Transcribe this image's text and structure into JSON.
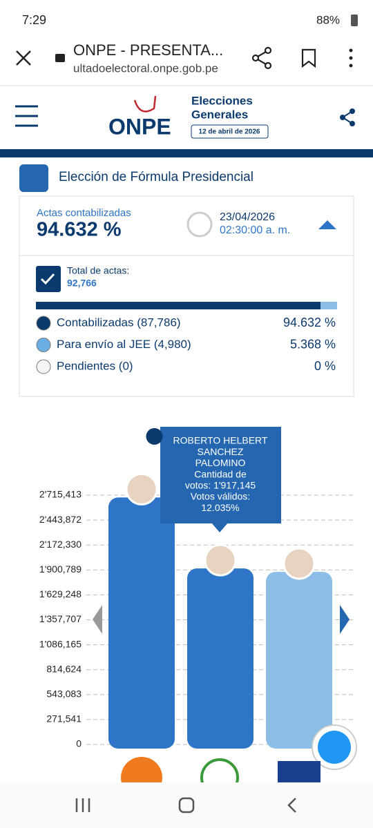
{
  "status_bar": {
    "time": "7:29",
    "battery": "88%"
  },
  "browser": {
    "title": "ONPE - PRESENTA...",
    "url": "ultadoelectoral.onpe.gob.pe"
  },
  "header": {
    "logo": "ONPE",
    "line1": "Elecciones",
    "line2": "Generales",
    "date": "12 de abril de 2026"
  },
  "section_title": "Elección de Fórmula Presidencial",
  "card": {
    "label": "Actas contabilizadas",
    "percent": "94.632 %",
    "date": "23/04/2026",
    "time": "02:30:00 a. m.",
    "total_label": "Total de actas:",
    "total": "92,766",
    "legend": [
      {
        "label": "Contabilizadas (87,786)",
        "pct": "94.632 %"
      },
      {
        "label": "Para envío al JEE (4,980)",
        "pct": "5.368 %"
      },
      {
        "label": "Pendientes (0)",
        "pct": "0 %"
      }
    ]
  },
  "chart": {
    "type": "bar",
    "values": [
      2690000,
      1917145,
      1880000
    ],
    "colors": [
      "#2e75c8",
      "#2e75c8",
      "#8bbde6"
    ],
    "ylim": [
      0,
      2715413
    ],
    "yticks": [
      {
        "value": 0,
        "label": "0"
      },
      {
        "value": 271541,
        "label": "271,541"
      },
      {
        "value": 543083,
        "label": "543,083"
      },
      {
        "value": 814624,
        "label": "814,624"
      },
      {
        "value": 1086165,
        "label": "1'086,165"
      },
      {
        "value": 1357707,
        "label": "1'357,707"
      },
      {
        "value": 1629248,
        "label": "1'629,248"
      },
      {
        "value": 1900789,
        "label": "1'900,789"
      },
      {
        "value": 2172330,
        "label": "2'172,330"
      },
      {
        "value": 2443872,
        "label": "2'443,872"
      },
      {
        "value": 2715413,
        "label": "2'715,413"
      }
    ],
    "tooltip": [
      "ROBERTO HELBERT",
      "SANCHEZ",
      "PALOMINO",
      "Cantidad de",
      "votos: 1'917,145",
      "Votos válidos:",
      "12.035%"
    ]
  }
}
